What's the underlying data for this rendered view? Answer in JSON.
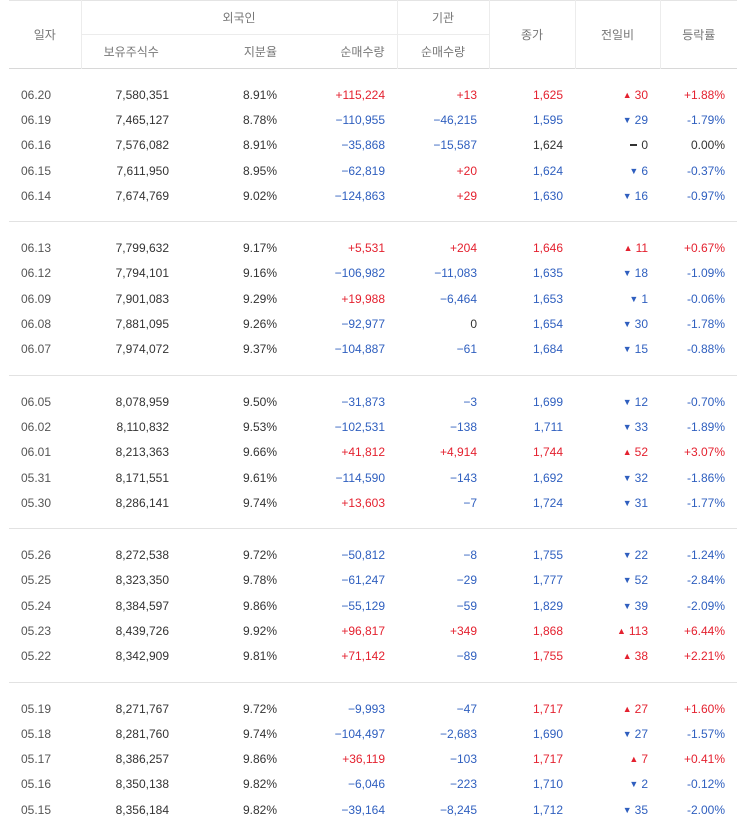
{
  "header": {
    "date": "일자",
    "foreign": "외국인",
    "holdings": "보유주식수",
    "share_ratio": "지분율",
    "foreign_net": "순매수량",
    "institution": "기관",
    "inst_net": "순매수량",
    "close": "종가",
    "change": "전일비",
    "rate": "등락률"
  },
  "groups": [
    [
      {
        "date": "06.20",
        "holdings": "7,580,351",
        "ratio": "8.91%",
        "fnet": "+115,224",
        "inet": "+13",
        "close": "1,625",
        "chg": "30",
        "dir": "up",
        "rate": "+1.88%"
      },
      {
        "date": "06.19",
        "holdings": "7,465,127",
        "ratio": "8.78%",
        "fnet": "−110,955",
        "inet": "−46,215",
        "close": "1,595",
        "chg": "29",
        "dir": "dn",
        "rate": "-1.79%"
      },
      {
        "date": "06.16",
        "holdings": "7,576,082",
        "ratio": "8.91%",
        "fnet": "−35,868",
        "inet": "−15,587",
        "close": "1,624",
        "chg": "0",
        "dir": "ev",
        "rate": "0.00%"
      },
      {
        "date": "06.15",
        "holdings": "7,611,950",
        "ratio": "8.95%",
        "fnet": "−62,819",
        "inet": "+20",
        "close": "1,624",
        "chg": "6",
        "dir": "dn",
        "rate": "-0.37%"
      },
      {
        "date": "06.14",
        "holdings": "7,674,769",
        "ratio": "9.02%",
        "fnet": "−124,863",
        "inet": "+29",
        "close": "1,630",
        "chg": "16",
        "dir": "dn",
        "rate": "-0.97%"
      }
    ],
    [
      {
        "date": "06.13",
        "holdings": "7,799,632",
        "ratio": "9.17%",
        "fnet": "+5,531",
        "inet": "+204",
        "close": "1,646",
        "chg": "11",
        "dir": "up",
        "rate": "+0.67%"
      },
      {
        "date": "06.12",
        "holdings": "7,794,101",
        "ratio": "9.16%",
        "fnet": "−106,982",
        "inet": "−11,083",
        "close": "1,635",
        "chg": "18",
        "dir": "dn",
        "rate": "-1.09%"
      },
      {
        "date": "06.09",
        "holdings": "7,901,083",
        "ratio": "9.29%",
        "fnet": "+19,988",
        "inet": "−6,464",
        "close": "1,653",
        "chg": "1",
        "dir": "dn",
        "rate": "-0.06%"
      },
      {
        "date": "06.08",
        "holdings": "7,881,095",
        "ratio": "9.26%",
        "fnet": "−92,977",
        "inet": "0",
        "close": "1,654",
        "chg": "30",
        "dir": "dn",
        "rate": "-1.78%"
      },
      {
        "date": "06.07",
        "holdings": "7,974,072",
        "ratio": "9.37%",
        "fnet": "−104,887",
        "inet": "−61",
        "close": "1,684",
        "chg": "15",
        "dir": "dn",
        "rate": "-0.88%"
      }
    ],
    [
      {
        "date": "06.05",
        "holdings": "8,078,959",
        "ratio": "9.50%",
        "fnet": "−31,873",
        "inet": "−3",
        "close": "1,699",
        "chg": "12",
        "dir": "dn",
        "rate": "-0.70%"
      },
      {
        "date": "06.02",
        "holdings": "8,110,832",
        "ratio": "9.53%",
        "fnet": "−102,531",
        "inet": "−138",
        "close": "1,711",
        "chg": "33",
        "dir": "dn",
        "rate": "-1.89%"
      },
      {
        "date": "06.01",
        "holdings": "8,213,363",
        "ratio": "9.66%",
        "fnet": "+41,812",
        "inet": "+4,914",
        "close": "1,744",
        "chg": "52",
        "dir": "up",
        "rate": "+3.07%"
      },
      {
        "date": "05.31",
        "holdings": "8,171,551",
        "ratio": "9.61%",
        "fnet": "−114,590",
        "inet": "−143",
        "close": "1,692",
        "chg": "32",
        "dir": "dn",
        "rate": "-1.86%"
      },
      {
        "date": "05.30",
        "holdings": "8,286,141",
        "ratio": "9.74%",
        "fnet": "+13,603",
        "inet": "−7",
        "close": "1,724",
        "chg": "31",
        "dir": "dn",
        "rate": "-1.77%"
      }
    ],
    [
      {
        "date": "05.26",
        "holdings": "8,272,538",
        "ratio": "9.72%",
        "fnet": "−50,812",
        "inet": "−8",
        "close": "1,755",
        "chg": "22",
        "dir": "dn",
        "rate": "-1.24%"
      },
      {
        "date": "05.25",
        "holdings": "8,323,350",
        "ratio": "9.78%",
        "fnet": "−61,247",
        "inet": "−29",
        "close": "1,777",
        "chg": "52",
        "dir": "dn",
        "rate": "-2.84%"
      },
      {
        "date": "05.24",
        "holdings": "8,384,597",
        "ratio": "9.86%",
        "fnet": "−55,129",
        "inet": "−59",
        "close": "1,829",
        "chg": "39",
        "dir": "dn",
        "rate": "-2.09%"
      },
      {
        "date": "05.23",
        "holdings": "8,439,726",
        "ratio": "9.92%",
        "fnet": "+96,817",
        "inet": "+349",
        "close": "1,868",
        "chg": "113",
        "dir": "up",
        "rate": "+6.44%"
      },
      {
        "date": "05.22",
        "holdings": "8,342,909",
        "ratio": "9.81%",
        "fnet": "+71,142",
        "inet": "−89",
        "close": "1,755",
        "chg": "38",
        "dir": "up",
        "rate": "+2.21%"
      }
    ],
    [
      {
        "date": "05.19",
        "holdings": "8,271,767",
        "ratio": "9.72%",
        "fnet": "−9,993",
        "inet": "−47",
        "close": "1,717",
        "chg": "27",
        "dir": "up",
        "rate": "+1.60%"
      },
      {
        "date": "05.18",
        "holdings": "8,281,760",
        "ratio": "9.74%",
        "fnet": "−104,497",
        "inet": "−2,683",
        "close": "1,690",
        "chg": "27",
        "dir": "dn",
        "rate": "-1.57%"
      },
      {
        "date": "05.17",
        "holdings": "8,386,257",
        "ratio": "9.86%",
        "fnet": "+36,119",
        "inet": "−103",
        "close": "1,717",
        "chg": "7",
        "dir": "up",
        "rate": "+0.41%"
      },
      {
        "date": "05.16",
        "holdings": "8,350,138",
        "ratio": "9.82%",
        "fnet": "−6,046",
        "inet": "−223",
        "close": "1,710",
        "chg": "2",
        "dir": "dn",
        "rate": "-0.12%"
      },
      {
        "date": "05.15",
        "holdings": "8,356,184",
        "ratio": "9.82%",
        "fnet": "−39,164",
        "inet": "−8,245",
        "close": "1,712",
        "chg": "35",
        "dir": "dn",
        "rate": "-2.00%"
      }
    ]
  ],
  "colors": {
    "up": "#e4212f",
    "down": "#2f5fbf",
    "neutral": "#333333"
  }
}
